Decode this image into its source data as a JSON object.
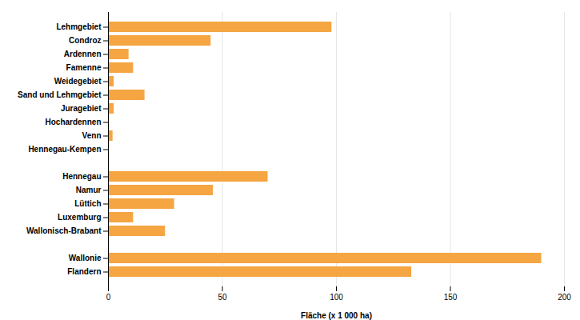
{
  "chart_data": {
    "type": "bar",
    "orientation": "horizontal",
    "categories": [
      "Lehmgebiet",
      "Condroz",
      "Ardennen",
      "Famenne",
      "Weidegebiet",
      "Sand und Lehmgebiet",
      "Juragebiet",
      "Hochardennen",
      "Venn",
      "Hennegau-Kempen",
      null,
      "Hennegau",
      "Namur",
      "Lüttich",
      "Luxemburg",
      "Wallonisch-Brabant",
      null,
      "Wallonie",
      "Flandern"
    ],
    "values": [
      98,
      45,
      9,
      11,
      2.5,
      16,
      2.5,
      0.4,
      2,
      0.3,
      0,
      70,
      46,
      29,
      11,
      25,
      0,
      190,
      133
    ],
    "color": "#F5A542",
    "xlabel": "Fläche (x 1 000 ha)",
    "xlim": [
      0,
      200
    ],
    "xticks": [
      0,
      50,
      100,
      150,
      200
    ],
    "grid": true
  }
}
